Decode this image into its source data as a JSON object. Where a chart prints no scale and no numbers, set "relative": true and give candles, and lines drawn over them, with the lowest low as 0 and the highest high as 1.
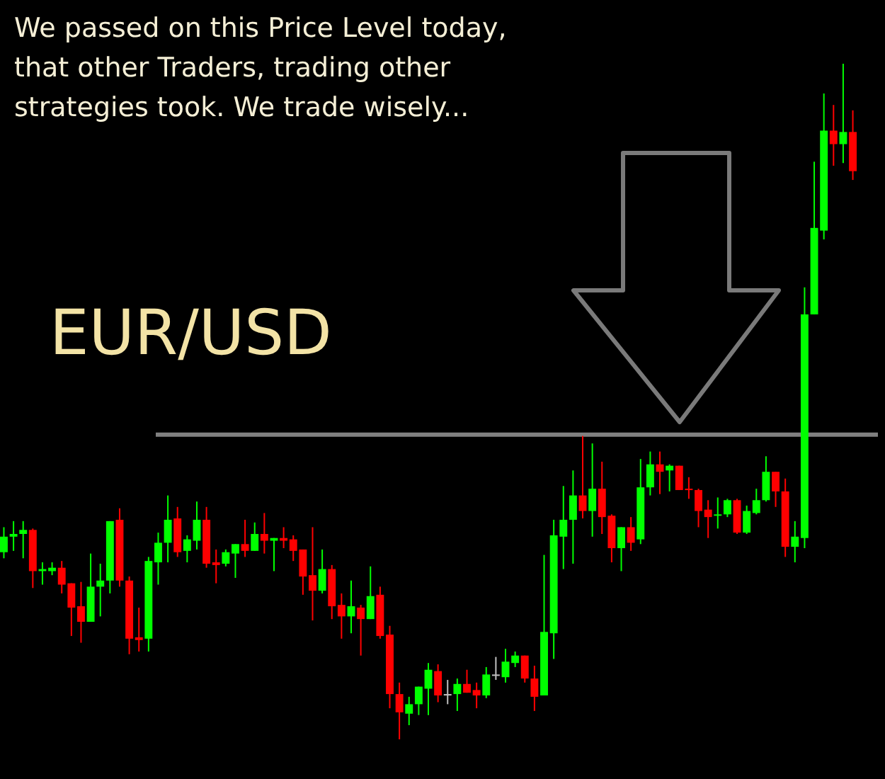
{
  "chart_data": {
    "type": "candlestick",
    "title": "EUR/USD",
    "relative": true,
    "annotations": [
      "We passed on this Price Level today, that other Traders, trading other strategies took. We trade wisely..."
    ],
    "categories": [
      null,
      null,
      null,
      null,
      null,
      null,
      null,
      null,
      null,
      null,
      null,
      null,
      null,
      null,
      null,
      null,
      null,
      null,
      null,
      null,
      null,
      null,
      null,
      null,
      null,
      null,
      null,
      null,
      null,
      null,
      null,
      null,
      null,
      null,
      null,
      null,
      null,
      null,
      null,
      null,
      null,
      null,
      null,
      null,
      null,
      null,
      null,
      null,
      null,
      null,
      null,
      null,
      null,
      null,
      null,
      null,
      null,
      null,
      null,
      null,
      null,
      null,
      null,
      null,
      null,
      null,
      null,
      null,
      null,
      null,
      null,
      null,
      null,
      null,
      null,
      null,
      null,
      null,
      null,
      null,
      null,
      null,
      null,
      null,
      null,
      null,
      null,
      null,
      null
    ],
    "ohlc": [
      [
        0.277,
        0.314,
        0.268,
        0.3
      ],
      [
        0.3,
        0.323,
        0.279,
        0.304
      ],
      [
        0.304,
        0.323,
        0.268,
        0.31
      ],
      [
        0.31,
        0.312,
        0.224,
        0.249
      ],
      [
        0.249,
        0.262,
        0.229,
        0.252
      ],
      [
        0.249,
        0.262,
        0.243,
        0.254
      ],
      [
        0.254,
        0.264,
        0.216,
        0.229
      ],
      [
        0.231,
        0.231,
        0.153,
        0.195
      ],
      [
        0.197,
        0.233,
        0.143,
        0.174
      ],
      [
        0.174,
        0.275,
        0.174,
        0.226
      ],
      [
        0.226,
        0.26,
        0.182,
        0.235
      ],
      [
        0.235,
        0.323,
        0.216,
        0.323
      ],
      [
        0.325,
        0.342,
        0.226,
        0.235
      ],
      [
        0.235,
        0.241,
        0.126,
        0.149
      ],
      [
        0.151,
        0.195,
        0.13,
        0.147
      ],
      [
        0.149,
        0.27,
        0.13,
        0.264
      ],
      [
        0.262,
        0.306,
        0.229,
        0.291
      ],
      [
        0.291,
        0.361,
        0.262,
        0.325
      ],
      [
        0.327,
        0.344,
        0.27,
        0.277
      ],
      [
        0.279,
        0.302,
        0.262,
        0.296
      ],
      [
        0.294,
        0.352,
        0.281,
        0.325
      ],
      [
        0.325,
        0.344,
        0.254,
        0.26
      ],
      [
        0.262,
        0.281,
        0.231,
        0.258
      ],
      [
        0.26,
        0.281,
        0.256,
        0.277
      ],
      [
        0.275,
        0.289,
        0.239,
        0.289
      ],
      [
        0.289,
        0.325,
        0.27,
        0.279
      ],
      [
        0.279,
        0.321,
        0.279,
        0.304
      ],
      [
        0.304,
        0.335,
        0.275,
        0.294
      ],
      [
        0.294,
        0.298,
        0.249,
        0.298
      ],
      [
        0.298,
        0.314,
        0.283,
        0.294
      ],
      [
        0.296,
        0.302,
        0.264,
        0.279
      ],
      [
        0.281,
        0.281,
        0.214,
        0.241
      ],
      [
        0.243,
        0.314,
        0.176,
        0.22
      ],
      [
        0.22,
        0.281,
        0.216,
        0.252
      ],
      [
        0.252,
        0.258,
        0.178,
        0.197
      ],
      [
        0.199,
        0.216,
        0.149,
        0.182
      ],
      [
        0.182,
        0.235,
        0.157,
        0.197
      ],
      [
        0.195,
        0.199,
        0.124,
        0.178
      ],
      [
        0.178,
        0.256,
        0.178,
        0.212
      ],
      [
        0.214,
        0.226,
        0.149,
        0.153
      ],
      [
        0.155,
        0.168,
        0.046,
        0.067
      ],
      [
        0.067,
        0.084,
        0,
        0.04
      ],
      [
        0.038,
        0.063,
        0.021,
        0.052
      ],
      [
        0.052,
        0.078,
        0.036,
        0.078
      ],
      [
        0.075,
        0.113,
        0.036,
        0.103
      ],
      [
        0.101,
        0.111,
        0.055,
        0.065
      ],
      [
        0.065,
        0.088,
        0.052,
        0.067
      ],
      [
        0.067,
        0.09,
        0.042,
        0.082
      ],
      [
        0.082,
        0.103,
        0.069,
        0.069
      ],
      [
        0.073,
        0.084,
        0.046,
        0.065
      ],
      [
        0.065,
        0.107,
        0.061,
        0.096
      ],
      [
        0.094,
        0.122,
        0.088,
        0.096
      ],
      [
        0.092,
        0.134,
        0.084,
        0.115
      ],
      [
        0.113,
        0.13,
        0.107,
        0.124
      ],
      [
        0.124,
        0.124,
        0.084,
        0.09
      ],
      [
        0.09,
        0.109,
        0.042,
        0.063
      ],
      [
        0.065,
        0.273,
        0.065,
        0.159
      ],
      [
        0.157,
        0.325,
        0.119,
        0.302
      ],
      [
        0.3,
        0.375,
        0.252,
        0.325
      ],
      [
        0.325,
        0.398,
        0.26,
        0.361
      ],
      [
        0.361,
        0.449,
        0.327,
        0.338
      ],
      [
        0.338,
        0.438,
        0.3,
        0.371
      ],
      [
        0.371,
        0.411,
        0.304,
        0.329
      ],
      [
        0.331,
        0.333,
        0.262,
        0.283
      ],
      [
        0.283,
        0.314,
        0.249,
        0.314
      ],
      [
        0.314,
        0.329,
        0.279,
        0.291
      ],
      [
        0.296,
        0.415,
        0.289,
        0.373
      ],
      [
        0.373,
        0.426,
        0.361,
        0.407
      ],
      [
        0.407,
        0.426,
        0.363,
        0.396
      ],
      [
        0.398,
        0.407,
        0.367,
        0.405
      ],
      [
        0.405,
        0.405,
        0.369,
        0.369
      ],
      [
        0.371,
        0.388,
        0.356,
        0.369
      ],
      [
        0.369,
        0.371,
        0.314,
        0.338
      ],
      [
        0.34,
        0.354,
        0.298,
        0.329
      ],
      [
        0.331,
        0.358,
        0.312,
        0.333
      ],
      [
        0.333,
        0.356,
        0.329,
        0.354
      ],
      [
        0.354,
        0.356,
        0.304,
        0.306
      ],
      [
        0.306,
        0.346,
        0.304,
        0.338
      ],
      [
        0.335,
        0.371,
        0.333,
        0.354
      ],
      [
        0.354,
        0.419,
        0.352,
        0.396
      ],
      [
        0.396,
        0.396,
        0.344,
        0.367
      ],
      [
        0.367,
        0.386,
        0.27,
        0.285
      ],
      [
        0.285,
        0.323,
        0.262,
        0.3
      ],
      [
        0.298,
        0.669,
        0.283,
        0.629
      ],
      [
        0.629,
        0.855,
        0.629,
        0.757
      ],
      [
        0.753,
        0.956,
        0.74,
        0.901
      ],
      [
        0.901,
        0.939,
        0.849,
        0.881
      ],
      [
        0.881,
        1,
        0.853,
        0.899
      ],
      [
        0.899,
        0.931,
        0.828,
        0.841
      ]
    ],
    "colors": [
      "#00ff00",
      "#00ff00",
      "#00ff00",
      "#ff0000",
      "#00ff00",
      "#00ff00",
      "#ff0000",
      "#ff0000",
      "#ff0000",
      "#00ff00",
      "#00ff00",
      "#00ff00",
      "#ff0000",
      "#ff0000",
      "#ff0000",
      "#00ff00",
      "#00ff00",
      "#00ff00",
      "#ff0000",
      "#00ff00",
      "#00ff00",
      "#ff0000",
      "#ff0000",
      "#00ff00",
      "#00ff00",
      "#ff0000",
      "#00ff00",
      "#ff0000",
      "#00ff00",
      "#ff0000",
      "#ff0000",
      "#ff0000",
      "#ff0000",
      "#00ff00",
      "#ff0000",
      "#ff0000",
      "#00ff00",
      "#ff0000",
      "#00ff00",
      "#ff0000",
      "#ff0000",
      "#ff0000",
      "#00ff00",
      "#00ff00",
      "#00ff00",
      "#ff0000",
      "#c0c0c0",
      "#00ff00",
      "#ff0000",
      "#ff0000",
      "#00ff00",
      "#c0c0c0",
      "#00ff00",
      "#00ff00",
      "#ff0000",
      "#ff0000",
      "#00ff00",
      "#00ff00",
      "#00ff00",
      "#00ff00",
      "#ff0000",
      "#00ff00",
      "#ff0000",
      "#ff0000",
      "#00ff00",
      "#ff0000",
      "#00ff00",
      "#00ff00",
      "#ff0000",
      "#00ff00",
      "#ff0000",
      "#ff0000",
      "#ff0000",
      "#ff0000",
      "#00ff00",
      "#00ff00",
      "#ff0000",
      "#00ff00",
      "#00ff00",
      "#00ff00",
      "#ff0000",
      "#ff0000",
      "#00ff00",
      "#00ff00",
      "#00ff00",
      "#00ff00",
      "#ff0000",
      "#00ff00",
      "#ff0000"
    ],
    "ref_lines": [
      {
        "axis": "y",
        "value": 0.451,
        "color": "#808080"
      }
    ]
  }
}
